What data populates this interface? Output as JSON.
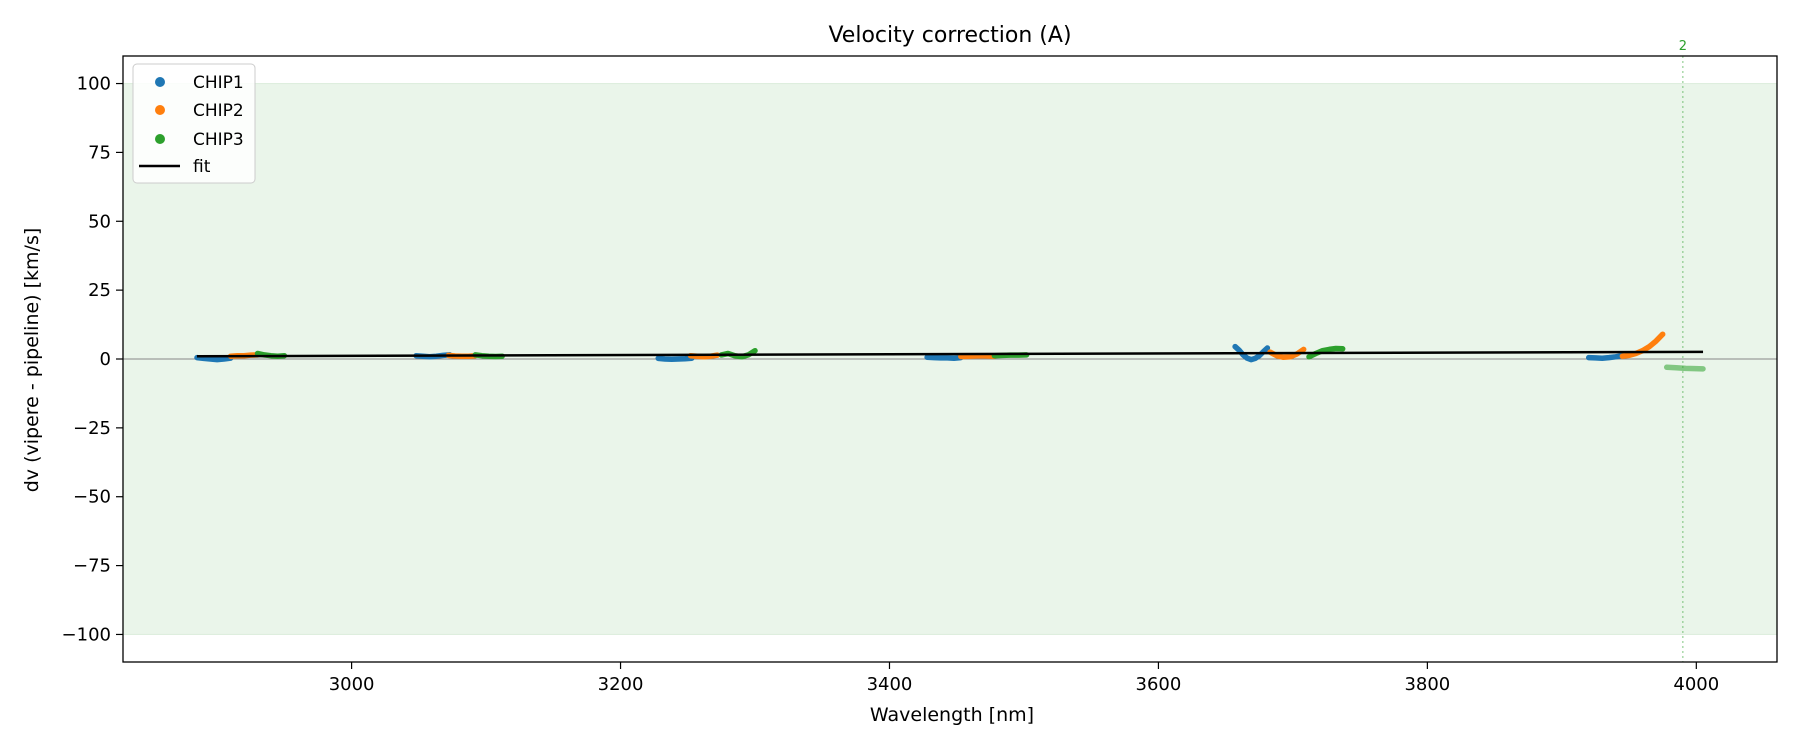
{
  "chart_data": {
    "type": "scatter",
    "title": "Velocity correction (A)",
    "xlabel": "Wavelength [nm]",
    "ylabel": "dv (vipere - pipeline) [km/s]",
    "xlim": [
      2830,
      4060
    ],
    "ylim": [
      -110,
      110
    ],
    "xticks": [
      3000,
      3200,
      3400,
      3600,
      3800,
      4000
    ],
    "yticks": [
      100,
      75,
      50,
      25,
      0,
      -25,
      -50,
      -75,
      -100
    ],
    "ytick_labels": [
      "100",
      "75",
      "50",
      "25",
      "0",
      "−25",
      "−50",
      "−75",
      "−100"
    ],
    "accepted_band": [
      -100,
      100
    ],
    "grid": false,
    "legend_position": "top-left",
    "zero_line": 0,
    "colors": {
      "CHIP1": "#1f77b4",
      "CHIP2": "#ff7f0e",
      "CHIP3": "#2ca02c",
      "fit": "#000000",
      "band": "#eaf5ea"
    },
    "series": [
      {
        "name": "CHIP1",
        "segments": [
          {
            "x": [
              2885,
              2890,
              2895,
              2900,
              2905,
              2910
            ],
            "y": [
              0.5,
              0.2,
              0.0,
              -0.2,
              0.0,
              0.3
            ]
          },
          {
            "x": [
              3048,
              3053,
              3058,
              3063,
              3068,
              3073
            ],
            "y": [
              1.2,
              1.0,
              0.8,
              1.0,
              1.3,
              1.5
            ]
          },
          {
            "x": [
              3228,
              3233,
              3238,
              3243,
              3248,
              3253
            ],
            "y": [
              0.2,
              0.0,
              -0.1,
              0.0,
              0.1,
              0.3
            ]
          },
          {
            "x": [
              3428,
              3433,
              3438,
              3443,
              3448,
              3453
            ],
            "y": [
              0.6,
              0.5,
              0.4,
              0.4,
              0.3,
              0.5
            ]
          },
          {
            "x": [
              3657,
              3660,
              3663,
              3666,
              3669,
              3672,
              3675,
              3678,
              3681
            ],
            "y": [
              4.5,
              3.2,
              1.5,
              0.3,
              -0.2,
              0.2,
              1.2,
              2.6,
              4.0
            ]
          },
          {
            "x": [
              3920,
              3925,
              3930,
              3935,
              3940,
              3945
            ],
            "y": [
              0.5,
              0.4,
              0.3,
              0.5,
              0.8,
              1.2
            ]
          }
        ]
      },
      {
        "name": "CHIP2",
        "segments": [
          {
            "x": [
              2910,
              2915,
              2920,
              2925,
              2930
            ],
            "y": [
              1.0,
              1.2,
              1.2,
              1.4,
              1.5
            ]
          },
          {
            "x": [
              3072,
              3077,
              3082,
              3087,
              3092
            ],
            "y": [
              1.3,
              1.1,
              1.0,
              1.0,
              1.2
            ]
          },
          {
            "x": [
              3252,
              3257,
              3262,
              3267,
              3272
            ],
            "y": [
              1.2,
              1.0,
              0.8,
              1.0,
              1.4
            ]
          },
          {
            "x": [
              3453,
              3458,
              3463,
              3468,
              3473,
              3478
            ],
            "y": [
              0.9,
              1.0,
              1.1,
              1.2,
              1.1,
              1.0
            ]
          },
          {
            "x": [
              3683,
              3688,
              3693,
              3698,
              3703,
              3708
            ],
            "y": [
              2.5,
              1.2,
              0.6,
              0.8,
              1.8,
              3.5
            ]
          },
          {
            "x": [
              3945,
              3950,
              3955,
              3960,
              3965,
              3970,
              3975
            ],
            "y": [
              1.0,
              1.3,
              2.0,
              3.0,
              4.5,
              6.5,
              9.0
            ]
          }
        ]
      },
      {
        "name": "CHIP3",
        "segments": [
          {
            "x": [
              2930,
              2935,
              2940,
              2945,
              2950
            ],
            "y": [
              2.0,
              1.5,
              1.2,
              1.0,
              1.2
            ]
          },
          {
            "x": [
              3092,
              3097,
              3102,
              3107,
              3112
            ],
            "y": [
              1.5,
              1.2,
              1.0,
              0.9,
              1.0
            ]
          },
          {
            "x": [
              3275,
              3280,
              3285,
              3290,
              3295,
              3300
            ],
            "y": [
              1.5,
              2.0,
              1.2,
              0.8,
              1.5,
              3.0
            ]
          },
          {
            "x": [
              3478,
              3484,
              3490,
              3496,
              3502
            ],
            "y": [
              1.2,
              1.3,
              1.4,
              1.4,
              1.5
            ]
          },
          {
            "x": [
              3712,
              3717,
              3722,
              3727,
              3732,
              3737
            ],
            "y": [
              0.8,
              2.0,
              3.0,
              3.5,
              3.8,
              3.7
            ]
          },
          {
            "x": [
              3978,
              3985,
              3992,
              3999,
              4005
            ],
            "y": [
              -3.0,
              -3.2,
              -3.4,
              -3.5,
              -3.6
            ],
            "faint": true
          }
        ]
      }
    ],
    "fit": {
      "name": "fit",
      "x": [
        2885,
        4005
      ],
      "y": [
        1.0,
        2.6
      ]
    },
    "annotations": [
      {
        "x": 3990,
        "label": "2",
        "color": "#2ca02c",
        "style": "dotted-vline"
      }
    ]
  }
}
